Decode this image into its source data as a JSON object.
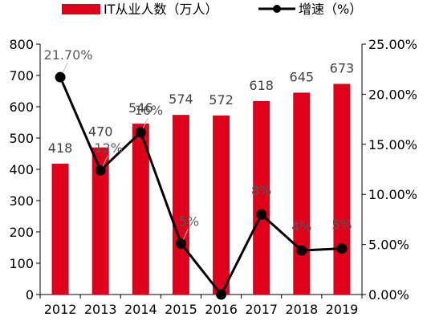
{
  "chart_data": {
    "type": "bar+line",
    "categories": [
      "2012",
      "2013",
      "2014",
      "2015",
      "2016",
      "2017",
      "2018",
      "2019"
    ],
    "series": [
      {
        "name": "IT从业人数（万人）",
        "type": "bar",
        "axis": "left",
        "color": "#E0001B",
        "values": [
          418,
          470,
          546,
          574,
          572,
          618,
          645,
          673
        ],
        "labels": [
          "418",
          "470",
          "546",
          "574",
          "572",
          "618",
          "645",
          "673"
        ]
      },
      {
        "name": "增速（%）",
        "type": "line",
        "axis": "right",
        "color": "#000000",
        "values": [
          21.7,
          12.4,
          16.2,
          5.1,
          -0.3,
          8.0,
          4.4,
          4.6
        ],
        "labels": [
          "21.70%",
          "12%",
          "16%",
          "5%",
          "",
          "8%",
          "4%",
          "5%"
        ]
      }
    ],
    "y_left": {
      "ylim": [
        0,
        800
      ],
      "ticks": [
        "0",
        "100",
        "200",
        "300",
        "400",
        "500",
        "600",
        "700",
        "800"
      ]
    },
    "y_right": {
      "ylim": [
        0,
        25
      ],
      "ticks": [
        "0.00%",
        "5.00%",
        "10.00%",
        "15.00%",
        "20.00%",
        "25.00%"
      ]
    },
    "legend": {
      "position": "top",
      "items": [
        "IT从业人数（万人）",
        "增速（%）"
      ]
    },
    "grid": false
  }
}
